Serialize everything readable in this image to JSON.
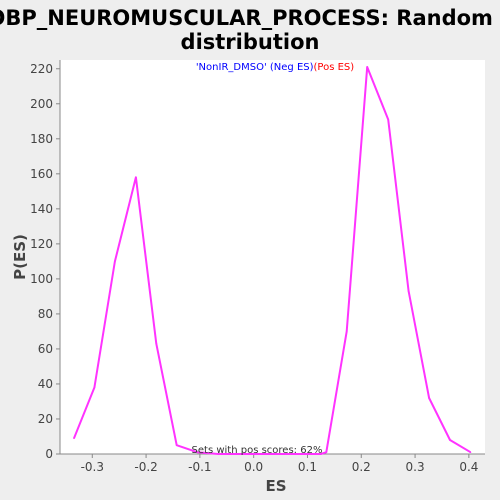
{
  "chart_data": {
    "type": "line",
    "title_line1": "GOBP_NEUROMUSCULAR_PROCESS: Random ES",
    "title_line2": "distribution",
    "xlabel": "ES",
    "ylabel": "P(ES)",
    "xlim": [
      -0.36,
      0.43
    ],
    "ylim": [
      0,
      225
    ],
    "x_ticks": [
      -0.3,
      -0.2,
      -0.1,
      0.0,
      0.1,
      0.2,
      0.3,
      0.4
    ],
    "x_tick_labels": [
      "-0.3",
      "-0.2",
      "-0.1",
      "0.0",
      "0.1",
      "0.2",
      "0.3",
      "0.4"
    ],
    "y_ticks": [
      0,
      20,
      40,
      60,
      80,
      100,
      120,
      140,
      160,
      180,
      200,
      220
    ],
    "y_tick_labels": [
      "0",
      "20",
      "40",
      "60",
      "80",
      "100",
      "120",
      "140",
      "160",
      "180",
      "200",
      "220"
    ],
    "grid": false,
    "legend": {
      "placement": "top-center",
      "parts": [
        {
          "text": "'NonIR_DMSO'",
          "color": "#0000ff"
        },
        {
          "text": " (Neg ES)",
          "color": "#0000ff"
        },
        {
          "text": "(Pos ES)",
          "color": "#ff0000"
        }
      ]
    },
    "annotation": "Sets with pos scores: 62%",
    "series": [
      {
        "color": "#ff33ff",
        "x": [
          -0.334,
          -0.296,
          -0.258,
          -0.219,
          -0.181,
          -0.143,
          -0.105,
          -0.066,
          -0.028,
          0.01,
          0.049,
          0.087,
          0.125,
          0.135,
          0.173,
          0.211,
          0.25,
          0.288,
          0.326,
          0.365,
          0.403
        ],
        "y": [
          9,
          38,
          110,
          158,
          63,
          5,
          1,
          0,
          0,
          0,
          0,
          0,
          0,
          1,
          70,
          221,
          191,
          93,
          32,
          8,
          1
        ]
      }
    ]
  }
}
